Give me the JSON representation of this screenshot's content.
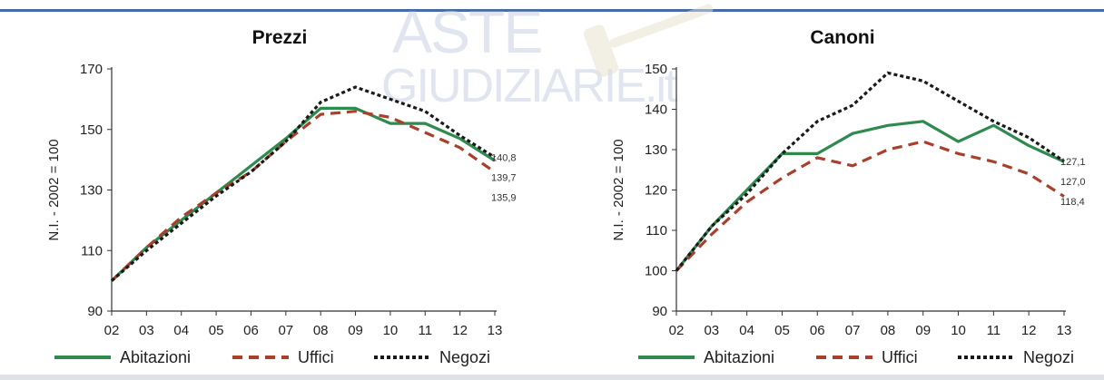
{
  "watermark": {
    "line1": "ASTE",
    "line2": "GIUDIZIARIE.it"
  },
  "colors": {
    "Abitazioni": "#2e8a4f",
    "Uffici": "#a8402c",
    "Negozi": "#1a1a1a",
    "axis": "#333333",
    "accent": "#4a6aa5"
  },
  "chart_data": [
    {
      "type": "line",
      "title": "Prezzi",
      "ylabel": "N.I. - 2002 = 100",
      "xlabel": "",
      "x": [
        "02",
        "03",
        "04",
        "05",
        "06",
        "07",
        "08",
        "09",
        "10",
        "11",
        "12",
        "13"
      ],
      "ylim": [
        90,
        170
      ],
      "yticks": [
        90,
        110,
        130,
        150,
        170
      ],
      "grid": false,
      "legend": "bottom",
      "series": [
        {
          "name": "Abitazioni",
          "style": "solid",
          "values": [
            100,
            111,
            120,
            129,
            138,
            147,
            157,
            157,
            152,
            152,
            147,
            139.7
          ],
          "end_label": "139,7"
        },
        {
          "name": "Uffici",
          "style": "dashed",
          "values": [
            100,
            111,
            121,
            129,
            136,
            146,
            155,
            156,
            154,
            149,
            144,
            135.9
          ],
          "end_label": "135,9"
        },
        {
          "name": "Negozi",
          "style": "dotted",
          "values": [
            100,
            110,
            119,
            128,
            136,
            146,
            159,
            164,
            160,
            156,
            148,
            140.8
          ],
          "end_label": "140,8"
        }
      ]
    },
    {
      "type": "line",
      "title": "Canoni",
      "ylabel": "N.I. - 2002 = 100",
      "xlabel": "",
      "x": [
        "02",
        "03",
        "04",
        "05",
        "06",
        "07",
        "08",
        "09",
        "10",
        "11",
        "12",
        "13"
      ],
      "ylim": [
        90,
        150
      ],
      "yticks": [
        90,
        100,
        110,
        120,
        130,
        140,
        150
      ],
      "grid": false,
      "legend": "bottom",
      "series": [
        {
          "name": "Abitazioni",
          "style": "solid",
          "values": [
            100,
            111,
            120,
            129,
            129,
            134,
            136,
            137,
            132,
            136,
            131,
            127.0
          ],
          "end_label": "127,0"
        },
        {
          "name": "Uffici",
          "style": "dashed",
          "values": [
            100,
            109,
            117,
            123,
            128,
            126,
            130,
            132,
            129,
            127,
            124,
            118.4
          ],
          "end_label": "118,4"
        },
        {
          "name": "Negozi",
          "style": "dotted",
          "values": [
            100,
            111,
            119,
            129,
            137,
            141,
            149,
            147,
            142,
            137,
            133,
            127.1
          ],
          "end_label": "127,1"
        }
      ]
    }
  ]
}
